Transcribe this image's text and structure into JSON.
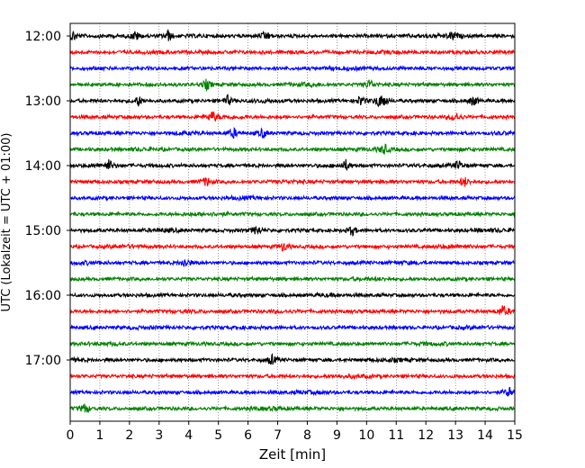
{
  "chart_data": {
    "type": "line",
    "subtype": "helicorder",
    "title": "",
    "xlabel": "Zeit  [min]",
    "ylabel": "UTC (Lokalzeit = UTC + 01:00)",
    "xlim": [
      0,
      15
    ],
    "x_ticks": [
      "0",
      "1",
      "2",
      "3",
      "4",
      "5",
      "6",
      "7",
      "8",
      "9",
      "10",
      "11",
      "12",
      "13",
      "14",
      "15"
    ],
    "y_tick_labels": [
      "12:00",
      "13:00",
      "14:00",
      "15:00",
      "16:00",
      "17:00"
    ],
    "row_start_times": [
      "12:00",
      "12:15",
      "12:30",
      "12:45",
      "13:00",
      "13:15",
      "13:30",
      "13:45",
      "14:00",
      "14:15",
      "14:30",
      "14:45",
      "15:00",
      "15:15",
      "15:30",
      "15:45",
      "16:00",
      "16:15",
      "16:30",
      "16:45",
      "17:00",
      "17:15",
      "17:30",
      "17:45"
    ],
    "row_minutes_per_line": 15,
    "x_grid": "dotted vertical lines at each minute",
    "color_cycle": [
      "#000000",
      "#ff0000",
      "#0000ff",
      "#008000"
    ],
    "notable_events": [
      {
        "row": 0,
        "minutes": [
          0.1,
          2.2,
          3.3,
          6.6,
          12.9
        ]
      },
      {
        "row": 3,
        "minutes": [
          4.6,
          10.1
        ]
      },
      {
        "row": 4,
        "minutes": [
          2.3,
          5.3,
          9.8,
          10.4,
          10.6,
          13.6
        ]
      },
      {
        "row": 5,
        "minutes": [
          4.8,
          13.0
        ]
      },
      {
        "row": 6,
        "minutes": [
          5.5,
          6.5
        ]
      },
      {
        "row": 7,
        "minutes": [
          10.6
        ]
      },
      {
        "row": 8,
        "minutes": [
          1.3,
          9.3,
          13.1
        ]
      },
      {
        "row": 9,
        "minutes": [
          4.6,
          13.3
        ]
      },
      {
        "row": 12,
        "minutes": [
          6.3,
          9.5
        ]
      },
      {
        "row": 13,
        "minutes": [
          7.2
        ]
      },
      {
        "row": 14,
        "minutes": [
          3.9
        ]
      },
      {
        "row": 17,
        "minutes": [
          14.6
        ]
      },
      {
        "row": 20,
        "minutes": [
          6.8
        ]
      },
      {
        "row": 22,
        "minutes": [
          14.8
        ]
      },
      {
        "row": 23,
        "minutes": [
          0.5
        ]
      }
    ]
  }
}
